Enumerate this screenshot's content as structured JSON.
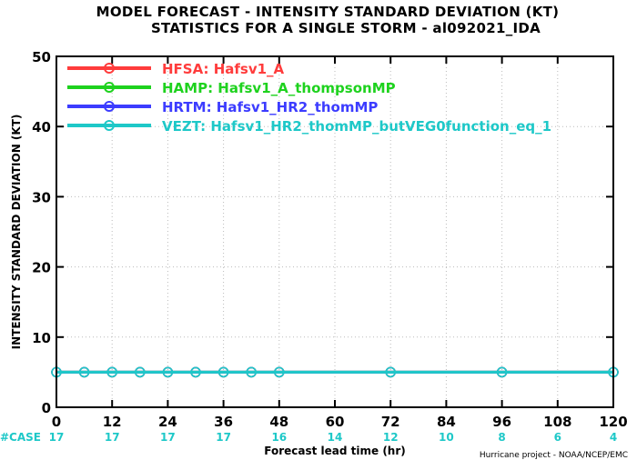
{
  "chart_data": {
    "type": "line",
    "title": "MODEL FORECAST - INTENSITY STANDARD DEVIATION (KT)",
    "subtitle": "STATISTICS FOR A SINGLE STORM - al092021_IDA",
    "xlabel": "Forecast lead time (hr)",
    "ylabel": "INTENSITY STANDARD DEVIATION (KT)",
    "xlim": [
      0,
      120
    ],
    "ylim": [
      0,
      50
    ],
    "xticks": [
      "0",
      "12",
      "24",
      "36",
      "48",
      "60",
      "72",
      "84",
      "96",
      "108",
      "120"
    ],
    "yticks": [
      "0",
      "10",
      "20",
      "30",
      "40",
      "50"
    ],
    "grid": true,
    "legend_position": "top-left",
    "x": [
      0,
      6,
      12,
      18,
      24,
      30,
      36,
      42,
      48,
      72,
      96,
      120
    ],
    "series": [
      {
        "name": "HFSA: Hafsv1_A",
        "color": "#ff3c3c",
        "values": [
          5,
          5,
          5,
          5,
          5,
          5,
          5,
          5,
          5,
          5,
          5,
          5
        ]
      },
      {
        "name": "HAMP: Hafsv1_A_thompsonMP",
        "color": "#1ed21e",
        "values": [
          5,
          5,
          5,
          5,
          5,
          5,
          5,
          5,
          5,
          5,
          5,
          5
        ]
      },
      {
        "name": "HRTM: Hafsv1_HR2_thomMP",
        "color": "#3c3cff",
        "values": [
          5,
          5,
          5,
          5,
          5,
          5,
          5,
          5,
          5,
          5,
          5,
          5
        ]
      },
      {
        "name": "VEZT: Hafsv1_HR2_thomMP_butVEG0function_eq_1",
        "color": "#1ec8c8",
        "values": [
          5,
          5,
          5,
          5,
          5,
          5,
          5,
          5,
          5,
          5,
          5,
          5
        ]
      }
    ],
    "case_label": "#CASE",
    "case_x": [
      0,
      12,
      24,
      36,
      48,
      60,
      72,
      84,
      96,
      108,
      120
    ],
    "case_counts": [
      "17",
      "17",
      "17",
      "17",
      "16",
      "14",
      "12",
      "10",
      "8",
      "6",
      "4"
    ],
    "case_color": "#1ec8c8",
    "credit": "Hurricane project - NOAA/NCEP/EMC"
  }
}
